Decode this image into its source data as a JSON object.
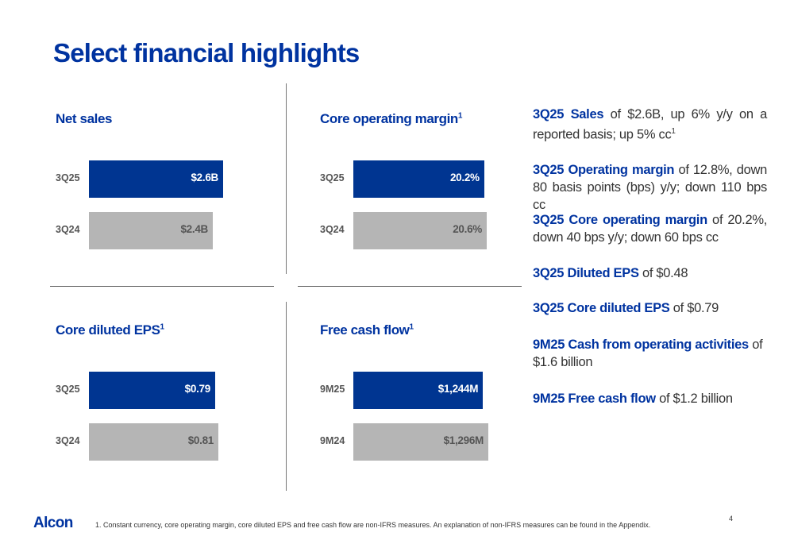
{
  "title": "Select financial highlights",
  "colors": {
    "brand": "#0033a0",
    "current_bar": "#003591",
    "prior_bar": "#b5b5b5"
  },
  "chart_data": [
    {
      "type": "bar",
      "orientation": "horizontal",
      "title": "Net sales",
      "title_sup": "",
      "categories": [
        "3Q25",
        "3Q24"
      ],
      "values": [
        2.6,
        2.4
      ],
      "labels": [
        "$2.6B",
        "$2.4B"
      ],
      "unit": "$B"
    },
    {
      "type": "bar",
      "orientation": "horizontal",
      "title": "Core operating margin",
      "title_sup": "1",
      "categories": [
        "3Q25",
        "3Q24"
      ],
      "values": [
        20.2,
        20.6
      ],
      "labels": [
        "20.2%",
        "20.6%"
      ],
      "unit": "%"
    },
    {
      "type": "bar",
      "orientation": "horizontal",
      "title": "Core diluted EPS",
      "title_sup": "1",
      "categories": [
        "3Q25",
        "3Q24"
      ],
      "values": [
        0.79,
        0.81
      ],
      "labels": [
        "$0.79",
        "$0.81"
      ],
      "unit": "$"
    },
    {
      "type": "bar",
      "orientation": "horizontal",
      "title": "Free cash flow",
      "title_sup": "1",
      "categories": [
        "9M25",
        "9M24"
      ],
      "values": [
        1244,
        1296
      ],
      "labels": [
        "$1,244M",
        "$1,296M"
      ],
      "unit": "$M"
    }
  ],
  "highlights": [
    {
      "bold": "3Q25 Sales",
      "text": " of $2.6B, up 6% y/y on a reported basis; up 5% cc",
      "sup": "1"
    },
    {
      "bold": "3Q25 Operating margin",
      "text": " of 12.8%, down 80 basis points (bps) y/y; down 110 bps cc",
      "sup": ""
    },
    {
      "bold": "3Q25 Core operating margin",
      "text": " of 20.2%, down 40 bps y/y; down 60 bps cc",
      "sup": ""
    },
    {
      "bold": "3Q25 Diluted EPS",
      "text": " of $0.48",
      "sup": ""
    },
    {
      "bold": "3Q25 Core diluted EPS",
      "text": " of $0.79",
      "sup": ""
    },
    {
      "bold": "9M25 Cash from operating activities",
      "text": " of $1.6 billion",
      "sup": ""
    },
    {
      "bold": "9M25 Free cash flow",
      "text": " of $1.2 billion",
      "sup": ""
    }
  ],
  "footer": {
    "logo": "Alcon",
    "footnote": "1.  Constant currency, core operating margin, core diluted EPS and free cash flow are non-IFRS measures. An explanation of non-IFRS measures can be found in the Appendix.",
    "page_number": "4"
  }
}
